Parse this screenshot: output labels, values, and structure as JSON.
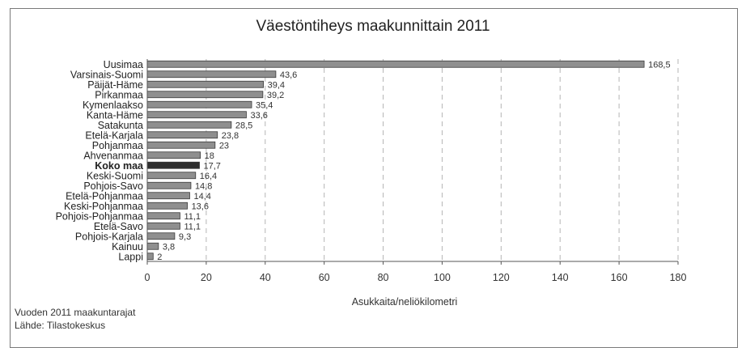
{
  "chart_data": {
    "type": "bar",
    "orientation": "horizontal",
    "title": "Väestöntiheys maakunnittain 2011",
    "xlabel": "Asukkaita/neliökilometri",
    "ylabel": "",
    "xlim": [
      0,
      180
    ],
    "x_ticks": [
      "0",
      "20",
      "40",
      "60",
      "80",
      "100",
      "120",
      "140",
      "160",
      "180"
    ],
    "grid": "vertical dashed",
    "highlight_category": "Koko maa",
    "categories": [
      "Uusimaa",
      "Varsinais-Suomi",
      "Päijät-Häme",
      "Pirkanmaa",
      "Kymenlaakso",
      "Kanta-Häme",
      "Satakunta",
      "Etelä-Karjala",
      "Pohjanmaa",
      "Ahvenanmaa",
      "Koko maa",
      "Keski-Suomi",
      "Pohjois-Savo",
      "Etelä-Pohjanmaa",
      "Keski-Pohjanmaa",
      "Pohjois-Pohjanmaa",
      "Etelä-Savo",
      "Pohjois-Karjala",
      "Kainuu",
      "Lappi"
    ],
    "values": [
      168.5,
      43.6,
      39.4,
      39.2,
      35.4,
      33.6,
      28.5,
      23.8,
      23,
      18,
      17.7,
      16.4,
      14.8,
      14.4,
      13.6,
      11.1,
      11.1,
      9.3,
      3.8,
      2
    ],
    "value_labels": [
      "168,5",
      "43,6",
      "39,4",
      "39,2",
      "35,4",
      "33,6",
      "28,5",
      "23,8",
      "23",
      "18",
      "17,7",
      "16,4",
      "14,8",
      "14,4",
      "13,6",
      "11,1",
      "11,1",
      "9,3",
      "3,8",
      "2"
    ],
    "colors": {
      "bar": "#8f8f8f",
      "highlight_bar": "#2e2e2e",
      "grid": "#b5b5b5",
      "axis": "#555555"
    }
  },
  "footer": {
    "line1": "Vuoden 2011 maakuntarajat",
    "line2": "Lähde: Tilastokeskus"
  }
}
